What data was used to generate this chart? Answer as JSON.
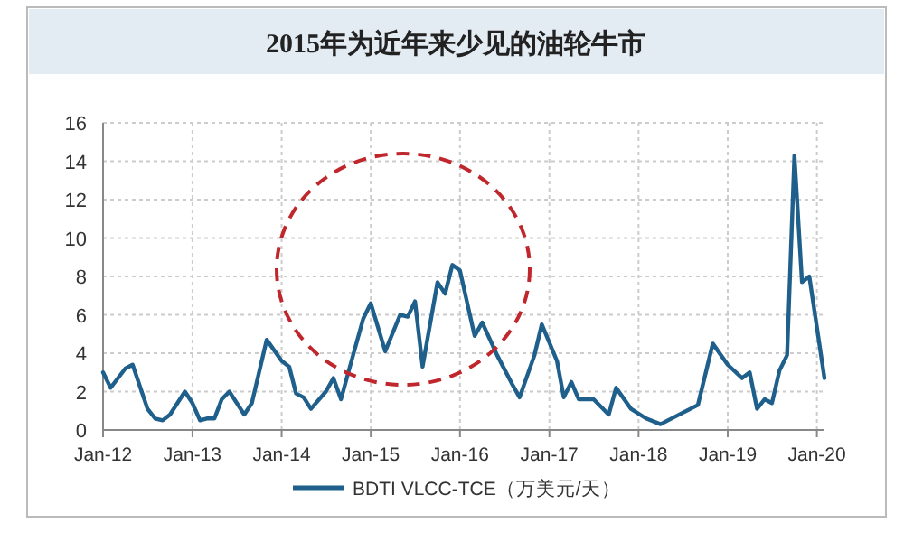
{
  "chart_data": {
    "type": "line",
    "title": "2015年为近年来少见的油轮牛市",
    "x": [
      "2012-01",
      "2012-02",
      "2012-04",
      "2012-05",
      "2012-07",
      "2012-08",
      "2012-09",
      "2012-10",
      "2012-12",
      "2013-01",
      "2013-02",
      "2013-03",
      "2013-04",
      "2013-05",
      "2013-06",
      "2013-08",
      "2013-09",
      "2013-11",
      "2014-01",
      "2014-02",
      "2014-03",
      "2014-04",
      "2014-05",
      "2014-07",
      "2014-08",
      "2014-09",
      "2014-10",
      "2014-12",
      "2015-01",
      "2015-03",
      "2015-05",
      "2015-06",
      "2015-07",
      "2015-08",
      "2015-10",
      "2015-11",
      "2015-12",
      "2016-01",
      "2016-03",
      "2016-04",
      "2016-06",
      "2016-08",
      "2016-09",
      "2016-11",
      "2016-12",
      "2017-02",
      "2017-03",
      "2017-04",
      "2017-05",
      "2017-07",
      "2017-09",
      "2017-10",
      "2017-12",
      "2018-02",
      "2018-04",
      "2018-07",
      "2018-08",
      "2018-09",
      "2018-11",
      "2019-01",
      "2019-03",
      "2019-04",
      "2019-05",
      "2019-06",
      "2019-07",
      "2019-08",
      "2019-09",
      "2019-10",
      "2019-11",
      "2019-12",
      "2020-02"
    ],
    "series": [
      {
        "name": "BDTI VLCC-TCE（万美元/天）",
        "color": "#1f5f8b",
        "values": [
          3.0,
          2.2,
          3.2,
          3.4,
          1.1,
          0.6,
          0.5,
          0.8,
          2.0,
          1.4,
          0.5,
          0.6,
          0.6,
          1.6,
          2.0,
          0.8,
          1.4,
          4.7,
          3.6,
          3.3,
          1.9,
          1.7,
          1.1,
          2.0,
          2.7,
          1.6,
          3.0,
          5.8,
          6.6,
          4.1,
          6.0,
          5.9,
          6.7,
          3.3,
          7.7,
          7.1,
          8.6,
          8.3,
          4.9,
          5.6,
          3.9,
          2.4,
          1.7,
          3.9,
          5.5,
          3.6,
          1.7,
          2.5,
          1.6,
          1.6,
          0.8,
          2.2,
          1.1,
          0.6,
          0.3,
          0.9,
          1.1,
          1.3,
          4.5,
          3.4,
          2.7,
          3.0,
          1.1,
          1.6,
          1.4,
          3.1,
          3.9,
          14.3,
          7.7,
          8.0,
          2.7
        ]
      }
    ],
    "xlim": [
      "2012-01",
      "2020-02"
    ],
    "xticks": [
      {
        "value": "2012-01",
        "label": "Jan-12"
      },
      {
        "value": "2013-01",
        "label": "Jan-13"
      },
      {
        "value": "2014-01",
        "label": "Jan-14"
      },
      {
        "value": "2015-01",
        "label": "Jan-15"
      },
      {
        "value": "2016-01",
        "label": "Jan-16"
      },
      {
        "value": "2017-01",
        "label": "Jan-17"
      },
      {
        "value": "2018-01",
        "label": "Jan-18"
      },
      {
        "value": "2019-01",
        "label": "Jan-19"
      },
      {
        "value": "2020-01",
        "label": "Jan-20"
      }
    ],
    "ylim": [
      0,
      16
    ],
    "yticks": [
      0,
      2,
      4,
      6,
      8,
      10,
      12,
      14,
      16
    ],
    "grid": true,
    "legend": "bottom"
  }
}
